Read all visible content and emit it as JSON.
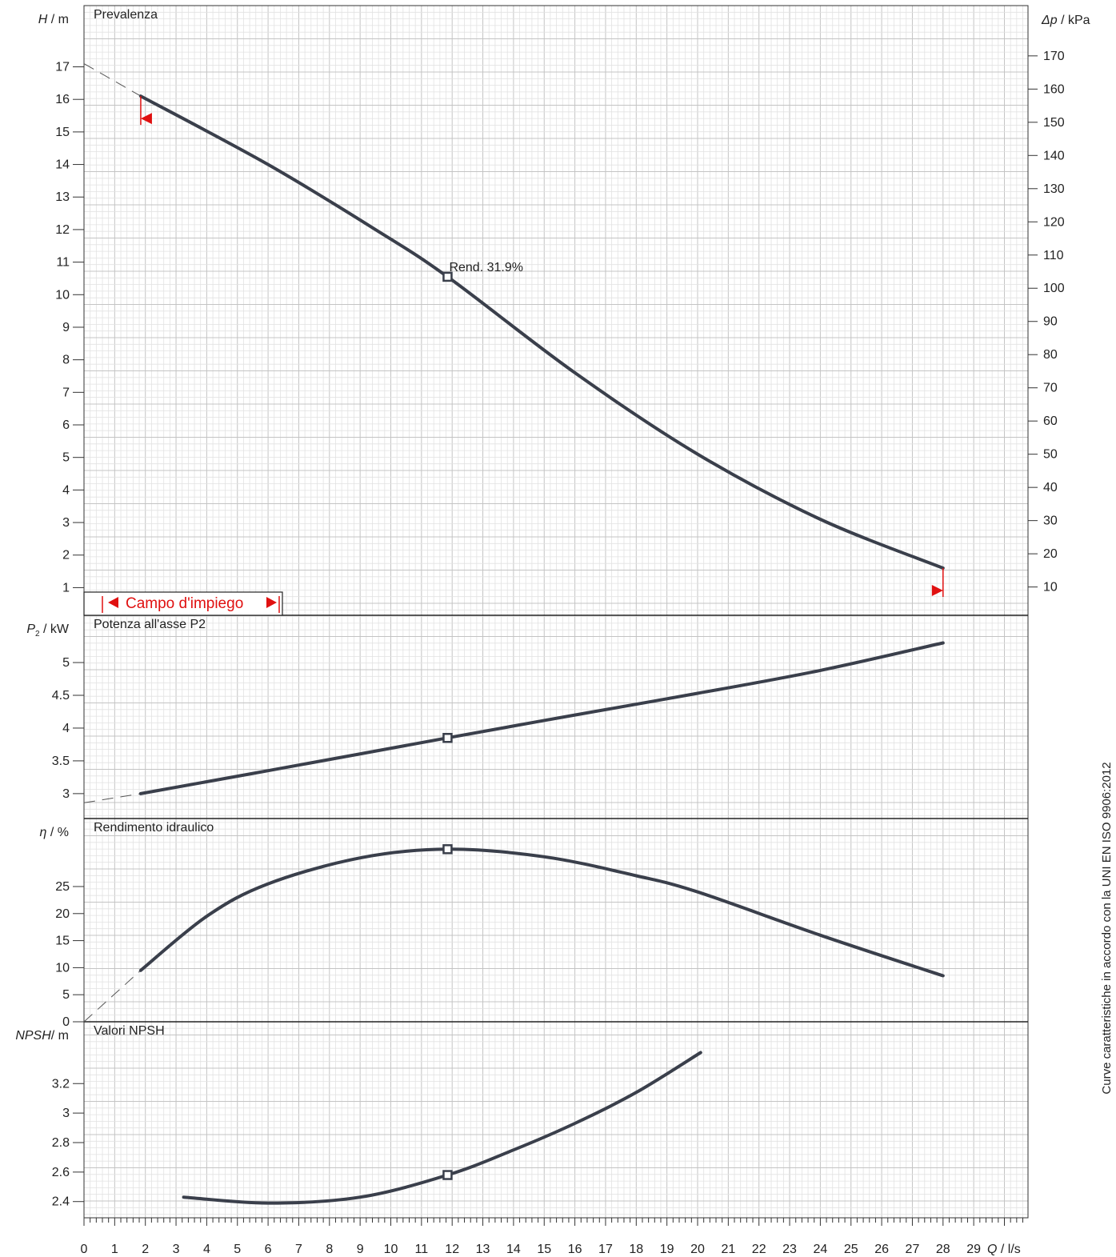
{
  "footer_text": "Curve caratteristiche in accordo con la UNI EN ISO 9906:2012",
  "x_axis": {
    "label_italic": "Q",
    "label_unit": " / l/s",
    "ticks": [
      "0",
      "1",
      "2",
      "3",
      "4",
      "5",
      "6",
      "7",
      "8",
      "9",
      "10",
      "11",
      "12",
      "13",
      "14",
      "15",
      "16",
      "17",
      "18",
      "19",
      "20",
      "21",
      "22",
      "23",
      "24",
      "25",
      "26",
      "27",
      "28",
      "29"
    ]
  },
  "colors": {
    "curve": "#3a3f4b",
    "marker": "#e01010",
    "grid_minor": "#e2e2e2",
    "grid_major": "#c4c4c4"
  },
  "operating_range": {
    "label": "Campo d'impiego",
    "q_min": 1.85,
    "q_max": 28.0
  },
  "chart_data": [
    {
      "type": "line",
      "title": "Prevalenza",
      "ylabel_italic": "H",
      "ylabel_unit": " / m",
      "y2label_italic": "Δp",
      "y2label_unit": " / kPa",
      "xlim": [
        0,
        30.8
      ],
      "ylim": [
        0.15,
        18.5
      ],
      "yticks": [
        "1",
        "2",
        "3",
        "4",
        "5",
        "6",
        "7",
        "8",
        "9",
        "10",
        "11",
        "12",
        "13",
        "14",
        "15",
        "16",
        "17"
      ],
      "y2ticks": [
        "10",
        "20",
        "30",
        "40",
        "50",
        "60",
        "70",
        "80",
        "90",
        "100",
        "110",
        "120",
        "130",
        "140",
        "150",
        "160",
        "170"
      ],
      "extrapolated": {
        "x": [
          0,
          1.85
        ],
        "y": [
          17.1,
          16.1
        ]
      },
      "series": [
        {
          "x": [
            1.85,
            6,
            9.5,
            11.85,
            16,
            20,
            24,
            28
          ],
          "y": [
            16.1,
            14,
            12,
            10.55,
            7.6,
            5.1,
            3.1,
            1.6
          ]
        }
      ],
      "point": {
        "x": 11.85,
        "y": 10.55
      },
      "annotation": "Rend.  31.9%"
    },
    {
      "type": "line",
      "title": "Potenza all'asse P2",
      "ylabel_italic": "P",
      "ylabel_sub": "2",
      "ylabel_unit": " / kW",
      "xlim": [
        0,
        30.8
      ],
      "ylim": [
        2.62,
        5.55
      ],
      "yticks": [
        "3",
        "3.5",
        "4",
        "4.5",
        "5"
      ],
      "extrapolated": {
        "x": [
          0,
          1.85
        ],
        "y": [
          2.86,
          3.0
        ]
      },
      "series": [
        {
          "x": [
            1.85,
            6,
            11.85,
            16,
            20,
            24,
            28
          ],
          "y": [
            3.0,
            3.35,
            3.85,
            4.2,
            4.53,
            4.88,
            5.3
          ]
        }
      ],
      "point": {
        "x": 11.85,
        "y": 3.85
      }
    },
    {
      "type": "line",
      "title": "Rendimento idraulico",
      "ylabel_italic": "η",
      "ylabel_unit": " / %",
      "xlim": [
        0,
        30.8
      ],
      "ylim": [
        0,
        35.5
      ],
      "yticks": [
        "0",
        "5",
        "10",
        "15",
        "20",
        "25"
      ],
      "extrapolated": {
        "x": [
          0,
          1.85
        ],
        "y": [
          0,
          9.5
        ]
      },
      "series": [
        {
          "x": [
            1.85,
            4,
            6,
            9,
            11.85,
            15,
            18,
            20,
            24,
            28
          ],
          "y": [
            9.5,
            19.5,
            25.5,
            30.3,
            31.9,
            30.5,
            27,
            24,
            16,
            8.5
          ]
        }
      ],
      "point": {
        "x": 11.85,
        "y": 31.9
      }
    },
    {
      "type": "line",
      "title": "Valori NPSH",
      "ylabel_italic": "NPSH",
      "ylabel_unit": "/ m",
      "xlim": [
        0,
        30.8
      ],
      "ylim": [
        2.29,
        3.535
      ],
      "yticks": [
        "2.4",
        "2.6",
        "2.8",
        "3",
        "3.2"
      ],
      "series": [
        {
          "x": [
            3.25,
            6,
            9,
            11.85,
            14,
            16,
            18,
            20.1
          ],
          "y": [
            2.43,
            2.39,
            2.43,
            2.58,
            2.75,
            2.93,
            3.14,
            3.41
          ]
        }
      ],
      "point": {
        "x": 11.85,
        "y": 2.58
      }
    }
  ]
}
